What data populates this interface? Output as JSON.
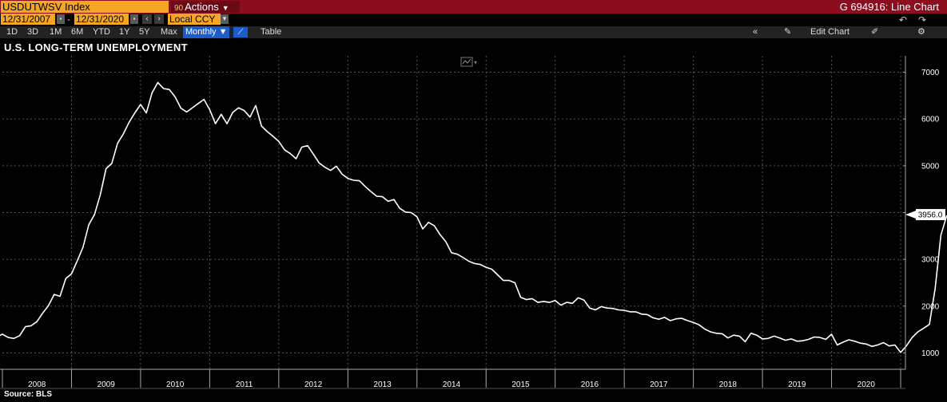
{
  "header": {
    "ticker": "USDUTWSV Index",
    "actions_num": "90",
    "actions_label": "Actions",
    "page_id": "G 694916: Line Chart"
  },
  "datebar": {
    "start_date": "12/31/2007",
    "end_date": "12/31/2020",
    "currency": "Local CCY"
  },
  "periods": [
    {
      "label": "1D",
      "active": false
    },
    {
      "label": "3D",
      "active": false
    },
    {
      "label": "1M",
      "active": false
    },
    {
      "label": "6M",
      "active": false
    },
    {
      "label": "YTD",
      "active": false
    },
    {
      "label": "1Y",
      "active": false
    },
    {
      "label": "5Y",
      "active": false
    },
    {
      "label": "Max",
      "active": false
    },
    {
      "label": "Monthly",
      "active": true
    }
  ],
  "toolbar": {
    "table_label": "Table",
    "edit_chart_label": "Edit Chart"
  },
  "colors": {
    "topbar": "#8b0d1e",
    "field": "#f5a623",
    "active": "#1e5ccc",
    "line": "#ffffff"
  },
  "chart_data": {
    "type": "line",
    "title": "U.S. LONG-TERM UNEMPLOYMENT",
    "source": "Source: BLS",
    "xlabel": "",
    "ylabel": "",
    "grid": true,
    "y_ticks": [
      1000,
      2000,
      3000,
      4000,
      5000,
      6000,
      7000
    ],
    "ylim": [
      650,
      7350
    ],
    "x_ticks": [
      "2008",
      "2009",
      "2010",
      "2011",
      "2012",
      "2013",
      "2014",
      "2015",
      "2016",
      "2017",
      "2018",
      "2019",
      "2020"
    ],
    "last_value_label": "3956.0",
    "series": [
      {
        "start": "2007-12",
        "frequency": "monthly",
        "values": [
          1340,
          1400,
          1330,
          1310,
          1370,
          1560,
          1580,
          1670,
          1850,
          2010,
          2250,
          2210,
          2590,
          2690,
          2970,
          3260,
          3740,
          3960,
          4380,
          4940,
          5050,
          5480,
          5680,
          5930,
          6130,
          6310,
          6130,
          6560,
          6780,
          6650,
          6630,
          6470,
          6230,
          6150,
          6240,
          6330,
          6420,
          6200,
          5900,
          6100,
          5900,
          6140,
          6240,
          6180,
          6040,
          6290,
          5850,
          5730,
          5630,
          5520,
          5340,
          5260,
          5150,
          5400,
          5430,
          5250,
          5060,
          4970,
          4900,
          4990,
          4820,
          4730,
          4690,
          4680,
          4560,
          4450,
          4350,
          4340,
          4240,
          4280,
          4090,
          4010,
          4000,
          3910,
          3650,
          3790,
          3720,
          3530,
          3380,
          3140,
          3110,
          3040,
          2960,
          2910,
          2890,
          2830,
          2790,
          2670,
          2550,
          2550,
          2500,
          2190,
          2140,
          2160,
          2080,
          2100,
          2080,
          2120,
          2020,
          2080,
          2060,
          2180,
          2130,
          1960,
          1920,
          1990,
          1960,
          1950,
          1920,
          1910,
          1880,
          1880,
          1830,
          1820,
          1750,
          1720,
          1760,
          1690,
          1730,
          1740,
          1690,
          1650,
          1600,
          1510,
          1450,
          1420,
          1410,
          1320,
          1380,
          1360,
          1240,
          1420,
          1380,
          1300,
          1310,
          1360,
          1320,
          1270,
          1300,
          1250,
          1260,
          1290,
          1340,
          1330,
          1290,
          1400,
          1170,
          1230,
          1280,
          1250,
          1210,
          1190,
          1140,
          1170,
          1220,
          1150,
          1170,
          1010,
          1150,
          1330,
          1450,
          1530,
          1610,
          2380,
          3520,
          3930,
          3956
        ]
      }
    ]
  }
}
